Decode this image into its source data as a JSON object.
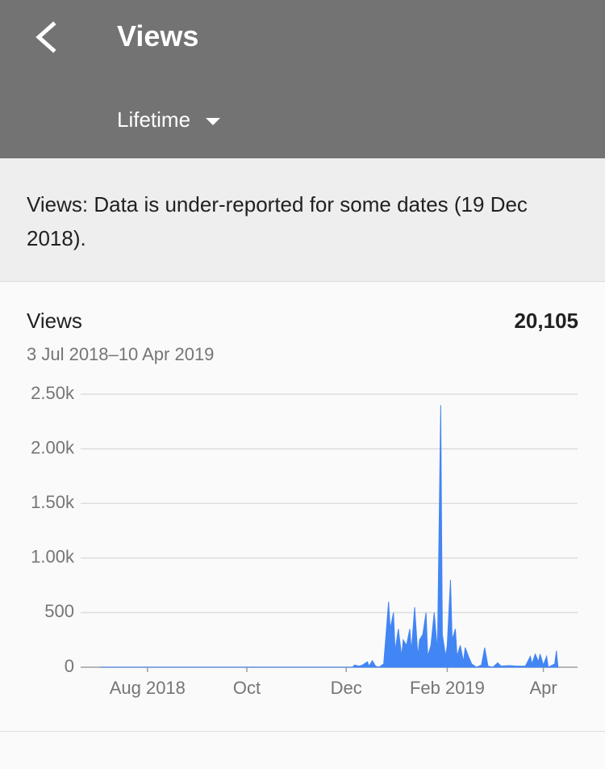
{
  "header": {
    "title": "Views",
    "range": "Lifetime"
  },
  "notice": "Views: Data is under-reported for some dates (19 Dec 2018).",
  "card": {
    "label": "Views",
    "total": "20,105",
    "dates": "3 Jul 2018–10 Apr 2019"
  },
  "chart_data": {
    "type": "area",
    "color": "#4285f4",
    "grid": true,
    "x": [
      0,
      155,
      156,
      159,
      161,
      164,
      165,
      167,
      169,
      171,
      174,
      177,
      178,
      180,
      181,
      183,
      185,
      186,
      188,
      190,
      191,
      193,
      195,
      196,
      198,
      200,
      201,
      203,
      205,
      207,
      209,
      210,
      212,
      213,
      215,
      216,
      218,
      219,
      221,
      223,
      224,
      226,
      228,
      231,
      234,
      236,
      238,
      241,
      244,
      246,
      251,
      256,
      261,
      264,
      265,
      267,
      269,
      270,
      272,
      274,
      275,
      279,
      280,
      281
    ],
    "values": [
      0,
      0,
      20,
      10,
      20,
      50,
      10,
      60,
      10,
      0,
      30,
      600,
      350,
      500,
      150,
      350,
      100,
      250,
      200,
      350,
      150,
      550,
      100,
      250,
      300,
      500,
      100,
      200,
      500,
      150,
      2400,
      300,
      100,
      200,
      800,
      250,
      350,
      100,
      200,
      50,
      180,
      100,
      30,
      0,
      20,
      180,
      10,
      0,
      40,
      10,
      15,
      10,
      10,
      100,
      30,
      120,
      50,
      120,
      20,
      100,
      0,
      30,
      150,
      0
    ],
    "xlim": [
      -12,
      293
    ],
    "xticks": [
      {
        "value": 29,
        "label": "Aug 2018"
      },
      {
        "value": 90,
        "label": "Oct"
      },
      {
        "value": 151,
        "label": "Dec"
      },
      {
        "value": 213,
        "label": "Feb 2019"
      },
      {
        "value": 272,
        "label": "Apr"
      }
    ],
    "ylim": [
      0,
      2500
    ],
    "yticks": [
      0,
      500,
      {
        "value": 1000,
        "label": "1.00k"
      },
      {
        "value": 1500,
        "label": "1.50k"
      },
      {
        "value": 2000,
        "label": "2.00k"
      },
      {
        "value": 2500,
        "label": "2.50k"
      }
    ]
  }
}
